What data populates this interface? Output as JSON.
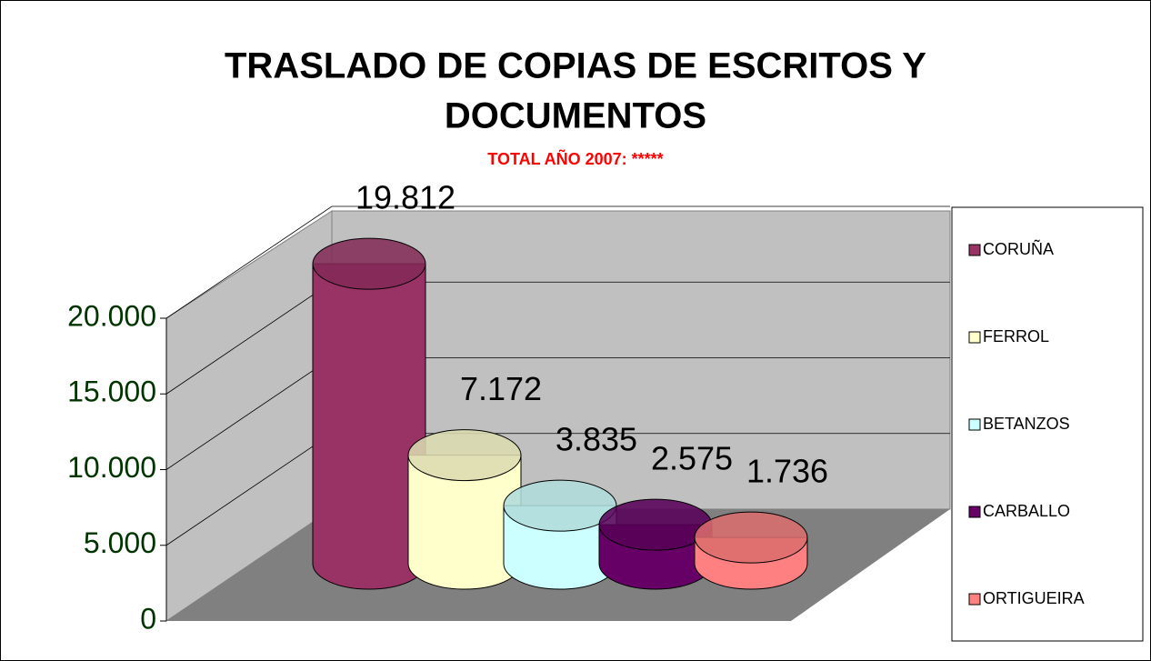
{
  "chart_data": {
    "type": "bar",
    "title_lines": [
      "TRASLADO DE COPIAS DE ESCRITOS Y",
      "DOCUMENTOS"
    ],
    "subtitle": "TOTAL AÑO 2007: *****",
    "categories": [
      "CORUÑA",
      "FERROL",
      "BETANZOS",
      "CARBALLO",
      "ORTIGUEIRA"
    ],
    "values": [
      19812,
      7172,
      3835,
      2575,
      1736
    ],
    "value_labels": [
      "19.812",
      "7.172",
      "3.835",
      "2.575",
      "1.736"
    ],
    "colors": [
      "#993366",
      "#ffffcc",
      "#ccffff",
      "#660066",
      "#ff8080"
    ],
    "ylim": [
      0,
      20000
    ],
    "yticks": [
      0,
      {
        "value": 5000,
        "label": "5.000"
      },
      {
        "value": 10000,
        "label": "10.000"
      },
      {
        "value": 15000,
        "label": "15.000"
      },
      {
        "value": 20000,
        "label": "20.000"
      }
    ],
    "grid": true,
    "legend": "right"
  }
}
